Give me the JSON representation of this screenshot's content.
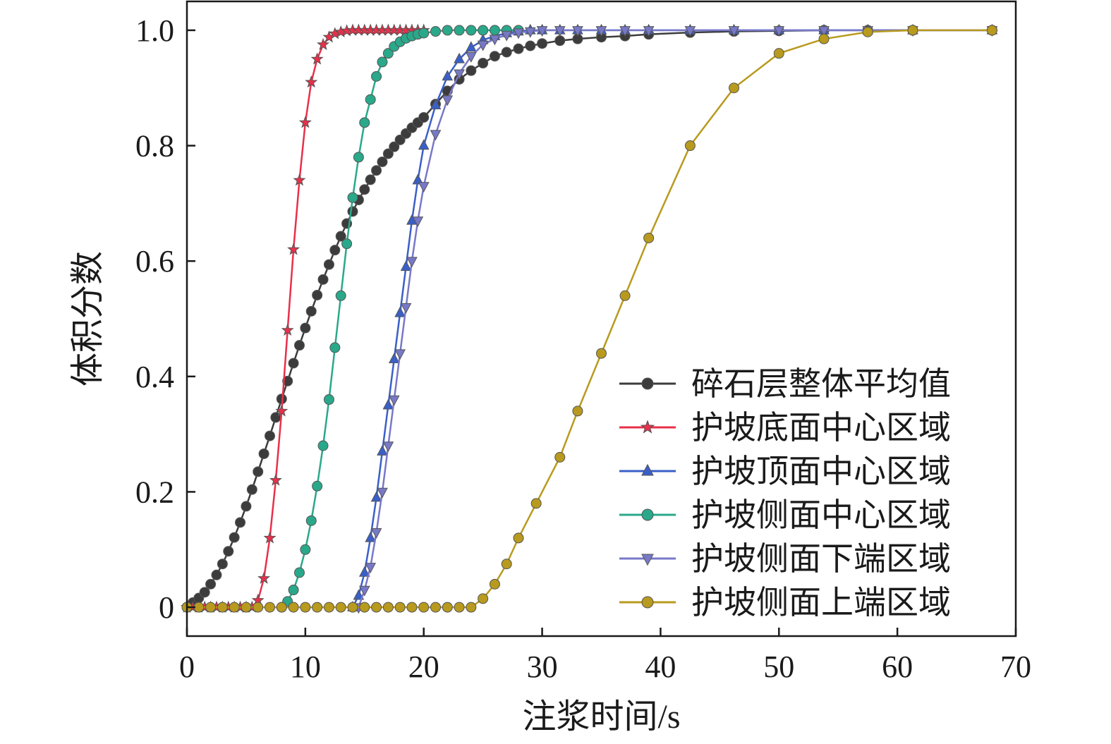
{
  "chart_data": {
    "type": "line",
    "xlabel": "注浆时间/s",
    "ylabel": "体积分数",
    "xlim": [
      0,
      70
    ],
    "ylim": [
      -0.05,
      1.05
    ],
    "x_ticks": [
      0,
      10,
      20,
      30,
      40,
      50,
      60,
      70
    ],
    "x_tick_labels": [
      "0",
      "10",
      "20",
      "30",
      "40",
      "50",
      "60",
      "70"
    ],
    "y_ticks": [
      0,
      0.2,
      0.4,
      0.6,
      0.8,
      1.0
    ],
    "y_tick_labels": [
      "0",
      "0.2",
      "0.4",
      "0.6",
      "0.8",
      "1.0"
    ],
    "grid": false,
    "legend_position": "bottom-right",
    "series": [
      {
        "name": "碎石层整体平均值",
        "color": "#3c3c3c",
        "marker": "circle",
        "x": [
          0,
          0.5,
          1,
          1.5,
          2,
          2.5,
          3,
          3.5,
          4,
          4.5,
          5,
          5.5,
          6,
          6.5,
          7,
          7.5,
          8,
          8.5,
          9,
          9.5,
          10,
          10.5,
          11,
          11.5,
          12,
          12.5,
          13,
          13.5,
          14,
          14.5,
          15,
          15.5,
          16,
          16.5,
          17,
          17.5,
          18,
          18.5,
          19,
          19.5,
          20,
          21,
          22,
          23,
          24,
          25,
          26,
          27,
          28,
          29,
          30,
          31.5,
          33,
          35,
          37,
          39,
          42.5,
          46.2,
          50,
          53.8,
          57.5,
          61.3,
          68
        ],
        "y": [
          0,
          0.008,
          0.016,
          0.026,
          0.04,
          0.056,
          0.075,
          0.097,
          0.121,
          0.147,
          0.175,
          0.204,
          0.235,
          0.266,
          0.297,
          0.329,
          0.361,
          0.392,
          0.423,
          0.454,
          0.484,
          0.513,
          0.541,
          0.568,
          0.594,
          0.619,
          0.643,
          0.665,
          0.686,
          0.706,
          0.724,
          0.741,
          0.757,
          0.772,
          0.786,
          0.798,
          0.81,
          0.821,
          0.831,
          0.84,
          0.849,
          0.872,
          0.895,
          0.915,
          0.93,
          0.943,
          0.955,
          0.962,
          0.968,
          0.973,
          0.977,
          0.982,
          0.985,
          0.988,
          0.99,
          0.993,
          0.996,
          0.998,
          0.999,
          1.0,
          1.0,
          1.0,
          1.0
        ]
      },
      {
        "name": "护坡底面中心区域",
        "color": "#e8304a",
        "marker": "star",
        "x": [
          0,
          0.5,
          1,
          1.5,
          2,
          2.5,
          3,
          3.5,
          4,
          4.5,
          5,
          5.5,
          6,
          6.5,
          7,
          7.5,
          8,
          8.5,
          9,
          9.5,
          10,
          10.5,
          11,
          11.5,
          12,
          12.5,
          13,
          13.5,
          14,
          14.5,
          15,
          15.5,
          16,
          16.5,
          17,
          17.5,
          18,
          18.5,
          19,
          19.5,
          20
        ],
        "y": [
          0,
          0,
          0,
          0,
          0,
          0,
          0,
          0,
          0,
          0,
          0,
          0,
          0.012,
          0.05,
          0.12,
          0.22,
          0.34,
          0.48,
          0.62,
          0.74,
          0.84,
          0.91,
          0.95,
          0.975,
          0.988,
          0.994,
          0.997,
          0.999,
          1.0,
          1.0,
          1.0,
          1.0,
          1.0,
          1.0,
          1.0,
          1.0,
          1.0,
          1.0,
          1.0,
          1.0,
          1.0
        ]
      },
      {
        "name": "护坡顶面中心区域",
        "color": "#3a5fc8",
        "marker": "triangle-up",
        "x": [
          14,
          14.5,
          15,
          15.5,
          16,
          16.5,
          17,
          17.5,
          18,
          18.5,
          19,
          19.5,
          20,
          21,
          22,
          23,
          24,
          25,
          26,
          27,
          28,
          29,
          30,
          31.5,
          33,
          35,
          37,
          39,
          42.5,
          46.2,
          50,
          53.8,
          57.5,
          61.3,
          68
        ],
        "y": [
          0,
          0.02,
          0.06,
          0.12,
          0.19,
          0.27,
          0.35,
          0.43,
          0.51,
          0.59,
          0.67,
          0.74,
          0.8,
          0.87,
          0.92,
          0.95,
          0.97,
          0.983,
          0.99,
          0.995,
          0.998,
          1.0,
          1.0,
          1.0,
          1.0,
          1.0,
          1.0,
          1.0,
          1.0,
          1.0,
          1.0,
          1.0,
          1.0,
          1.0,
          1.0
        ]
      },
      {
        "name": "护坡侧面中心区域",
        "color": "#2aa88a",
        "marker": "circle",
        "x": [
          8,
          8.5,
          9,
          9.5,
          10,
          10.5,
          11,
          11.5,
          12,
          12.5,
          13,
          13.5,
          14,
          14.5,
          15,
          15.5,
          16,
          16.5,
          17,
          17.5,
          18,
          18.5,
          19,
          19.5,
          20,
          21,
          22,
          23,
          24,
          25,
          26,
          27,
          28
        ],
        "y": [
          0,
          0.01,
          0.03,
          0.06,
          0.1,
          0.15,
          0.21,
          0.28,
          0.36,
          0.45,
          0.54,
          0.63,
          0.71,
          0.78,
          0.84,
          0.88,
          0.92,
          0.945,
          0.96,
          0.972,
          0.98,
          0.986,
          0.99,
          0.993,
          0.995,
          0.998,
          1.0,
          1.0,
          1.0,
          1.0,
          1.0,
          1.0,
          1.0
        ]
      },
      {
        "name": "护坡侧面下端区域",
        "color": "#7878c8",
        "marker": "triangle-down",
        "x": [
          14.5,
          15,
          15.5,
          16,
          16.5,
          17,
          17.5,
          18,
          18.5,
          19,
          19.5,
          20,
          21,
          22,
          23,
          24,
          25,
          26,
          27,
          28,
          29,
          30,
          31.5,
          33,
          35,
          37,
          39,
          42.5,
          46.2,
          50,
          53.8,
          57.5,
          61.3,
          68
        ],
        "y": [
          0,
          0.03,
          0.07,
          0.13,
          0.2,
          0.28,
          0.36,
          0.44,
          0.52,
          0.6,
          0.67,
          0.73,
          0.82,
          0.88,
          0.925,
          0.955,
          0.975,
          0.985,
          0.992,
          0.996,
          0.998,
          1.0,
          1.0,
          1.0,
          1.0,
          1.0,
          1.0,
          1.0,
          1.0,
          1.0,
          1.0,
          1.0,
          1.0,
          1.0
        ]
      },
      {
        "name": "护坡侧面上端区域",
        "color": "#b89a1e",
        "marker": "circle",
        "x": [
          0,
          1,
          2,
          3,
          4,
          5,
          6,
          7,
          8,
          9,
          10,
          11,
          12,
          13,
          14,
          15,
          16,
          17,
          18,
          19,
          20,
          21,
          22,
          23,
          24,
          25,
          26,
          27,
          28,
          29.5,
          31.5,
          33,
          35,
          37,
          39,
          42.5,
          46.2,
          50,
          53.8,
          57.5,
          61.3,
          68
        ],
        "y": [
          0,
          0,
          0,
          0,
          0,
          0,
          0,
          0,
          0,
          0,
          0,
          0,
          0,
          0,
          0,
          0,
          0,
          0,
          0,
          0,
          0,
          0,
          0,
          0,
          0,
          0.015,
          0.04,
          0.075,
          0.12,
          0.18,
          0.26,
          0.34,
          0.44,
          0.54,
          0.64,
          0.8,
          0.9,
          0.96,
          0.985,
          0.997,
          1.0,
          1.0
        ]
      }
    ]
  }
}
